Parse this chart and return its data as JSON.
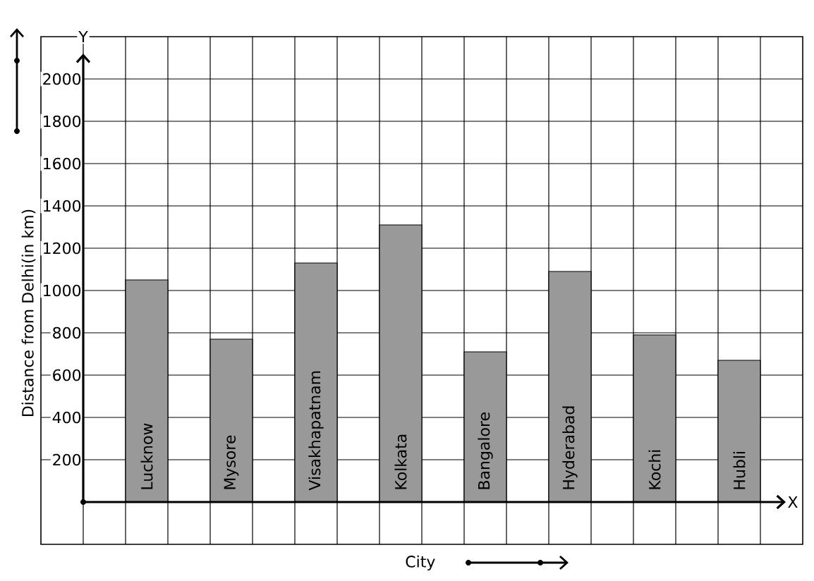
{
  "chart_data": {
    "type": "bar",
    "xlabel": "City",
    "ylabel": "Distance from Delhi(in km)",
    "categories": [
      "Lucknow",
      "Mysore",
      "Visakhapatnam",
      "Kolkata",
      "Bangalore",
      "Hyderabad",
      "Kochi",
      "Hubli"
    ],
    "values": [
      1050,
      770,
      1130,
      1310,
      710,
      1090,
      790,
      670
    ],
    "color": "#999999",
    "ylim": [
      -200,
      2200
    ],
    "yticks": [
      200,
      400,
      600,
      800,
      1000,
      1200,
      1400,
      1600,
      1800,
      2000
    ],
    "grid": true,
    "annotations": [
      "Y",
      "X"
    ]
  }
}
